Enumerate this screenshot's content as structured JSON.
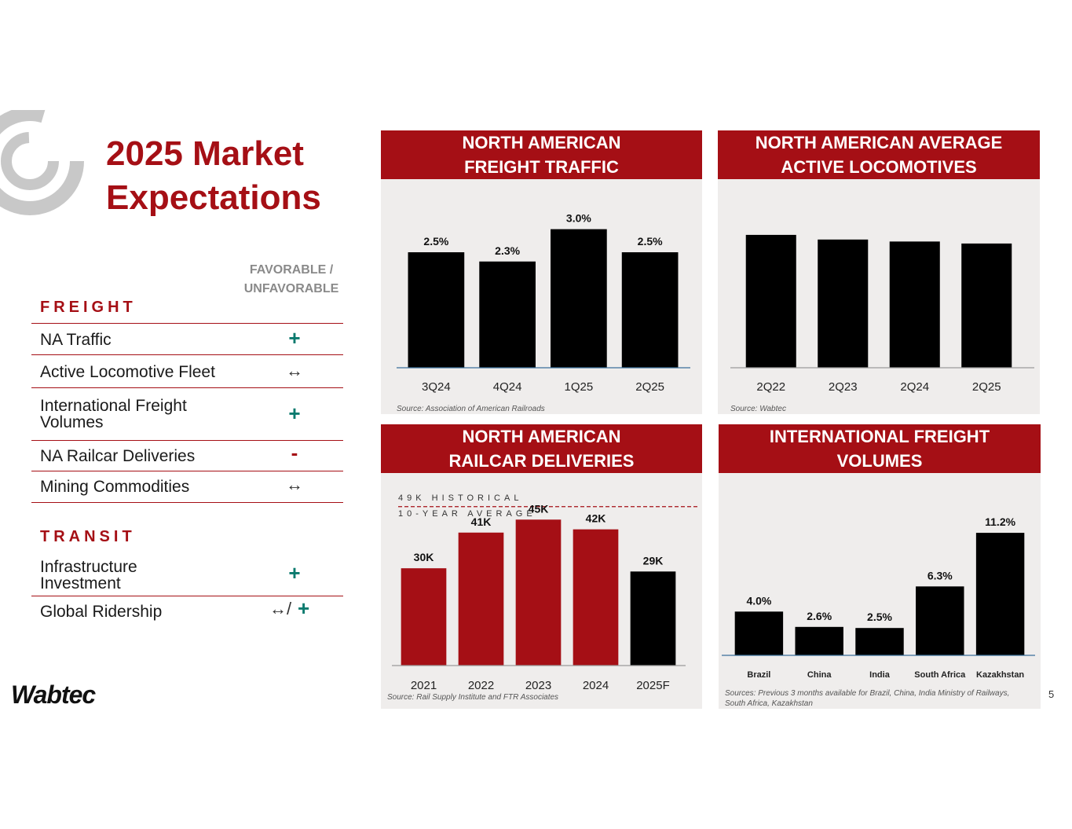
{
  "title": {
    "line1": "2025 Market",
    "line2": "Expectations"
  },
  "table": {
    "fav_header_line1": "FAVORABLE /",
    "fav_header_line2": "UNFAVORABLE",
    "freight_header": "FREIGHT",
    "transit_header": "TRANSIT",
    "freight_rows": [
      {
        "label": "NA Traffic",
        "symbol": "+"
      },
      {
        "label": "Active Locomotive Fleet",
        "symbol": "↔"
      },
      {
        "label_line1": "International Freight",
        "label_line2": "Volumes",
        "symbol": "+"
      },
      {
        "label": "NA Railcar Deliveries",
        "symbol": "-"
      },
      {
        "label": "Mining Commodities",
        "symbol": "↔"
      }
    ],
    "transit_rows": [
      {
        "label_line1": "Infrastructure",
        "label_line2": "Investment",
        "symbol": "+"
      },
      {
        "label": "Global Ridership",
        "symbol_a": "↔/",
        "symbol_b": "+"
      }
    ]
  },
  "panels": {
    "traffic": {
      "title_line1": "NORTH AMERICAN",
      "title_line2": "FREIGHT TRAFFIC",
      "source": "Source: Association of American Railroads"
    },
    "locos": {
      "title_line1": "NORTH AMERICAN AVERAGE",
      "title_line2": "ACTIVE LOCOMOTIVES",
      "source": "Source: Wabtec"
    },
    "railcar": {
      "title_line1": "NORTH AMERICAN",
      "title_line2": "RAILCAR DELIVERIES",
      "source": "Source: Rail Supply Institute and FTR Associates",
      "ref_line1": "49K HISTORICAL",
      "ref_line2": "10-YEAR AVERAGE"
    },
    "intl": {
      "title_line1": "INTERNATIONAL FREIGHT",
      "title_line2": "VOLUMES",
      "source_line1": "Sources: Previous 3 months available for Brazil, China, India Ministry of Railways,",
      "source_line2": "South Africa, Kazakhstan"
    }
  },
  "colors": {
    "brand_red": "#a50f15",
    "bar_black": "#000000",
    "favorable_teal": "#0a7a6e",
    "panel_bg": "#efedec"
  },
  "chart_data": [
    {
      "type": "bar",
      "title": "NORTH AMERICAN FREIGHT TRAFFIC",
      "categories": [
        "3Q24",
        "4Q24",
        "1Q25",
        "2Q25"
      ],
      "values": [
        2.5,
        2.3,
        3.0,
        2.5
      ],
      "labels": [
        "2.5%",
        "2.3%",
        "3.0%",
        "2.5%"
      ],
      "ylim": [
        0,
        3.3
      ]
    },
    {
      "type": "bar",
      "title": "NORTH AMERICAN AVERAGE ACTIVE LOCOMOTIVES",
      "categories": [
        "2Q22",
        "2Q23",
        "2Q24",
        "2Q25"
      ],
      "values": [
        100,
        96.5,
        95,
        93.5
      ],
      "labels": [
        "",
        "",
        "",
        ""
      ],
      "ylim": [
        0,
        110
      ]
    },
    {
      "type": "bar",
      "title": "NORTH AMERICAN RAILCAR DELIVERIES",
      "categories": [
        "2021",
        "2022",
        "2023",
        "2024",
        "2025F"
      ],
      "values": [
        30,
        41,
        45,
        42,
        29
      ],
      "labels": [
        "30K",
        "41K",
        "45K",
        "42K",
        "29K"
      ],
      "colors": [
        "#a50f15",
        "#a50f15",
        "#a50f15",
        "#a50f15",
        "#000000"
      ],
      "reference_line": 49,
      "ylim": [
        0,
        55
      ]
    },
    {
      "type": "bar",
      "title": "INTERNATIONAL FREIGHT VOLUMES",
      "categories": [
        "Brazil",
        "China",
        "India",
        "South Africa",
        "Kazakhstan"
      ],
      "values": [
        4.0,
        2.6,
        2.5,
        6.3,
        11.2
      ],
      "labels": [
        "4.0%",
        "2.6%",
        "2.5%",
        "6.3%",
        "11.2%"
      ],
      "ylim": [
        0,
        12.5
      ]
    }
  ],
  "footer": {
    "brand": "Wabtec",
    "page": "5"
  }
}
